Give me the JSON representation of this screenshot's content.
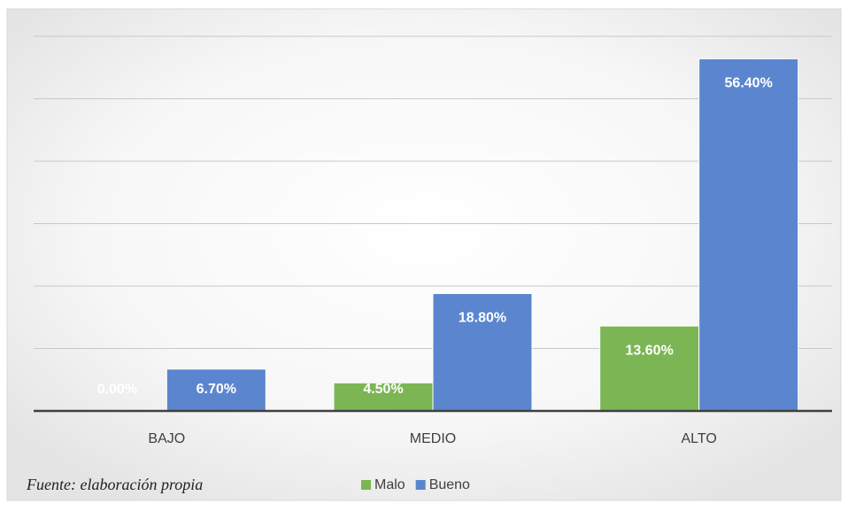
{
  "chart_data": {
    "type": "bar",
    "categories": [
      "BAJO",
      "MEDIO",
      "ALTO"
    ],
    "series": [
      {
        "name": "Malo",
        "color": "#7cb554",
        "values": [
          0,
          4.5,
          13.6
        ],
        "value_labels": [
          "0.00%",
          "4.50%",
          "13.60%"
        ]
      },
      {
        "name": "Bueno",
        "color": "#5b86cf",
        "values": [
          6.7,
          18.8,
          56.4
        ],
        "value_labels": [
          "6.70%",
          "18.80%",
          "56.40%"
        ]
      }
    ],
    "ylim": [
      0,
      60
    ],
    "yticks": [
      0,
      10,
      20,
      30,
      40,
      50,
      60
    ],
    "grid": true,
    "legend": "bottom",
    "note": "Fuente: elaboración propia"
  }
}
